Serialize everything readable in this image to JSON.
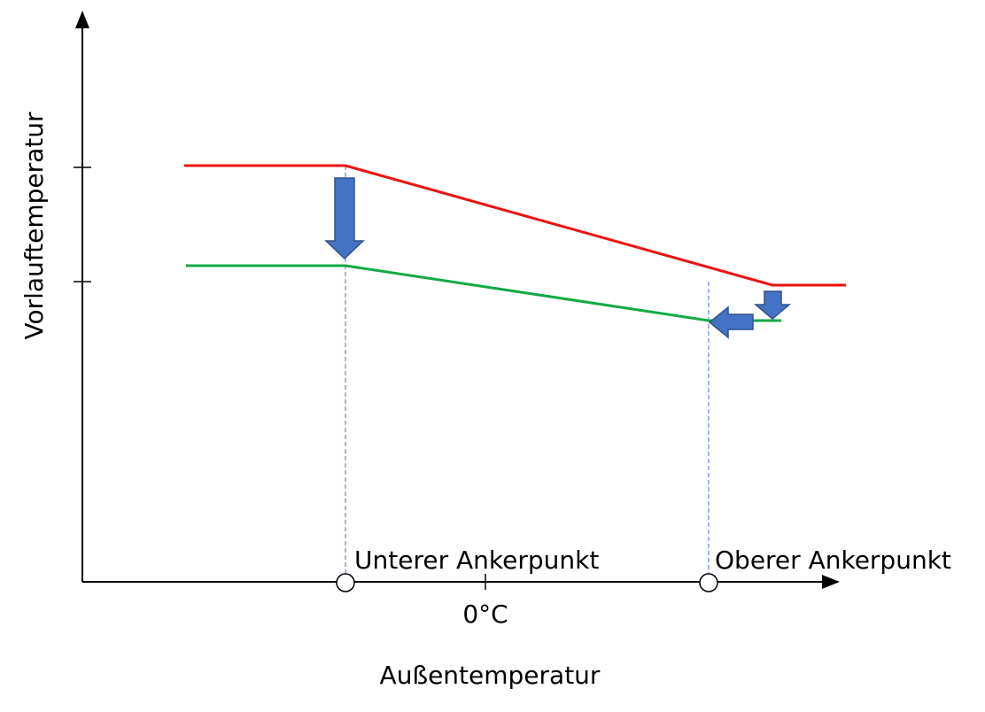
{
  "y_axis_label": "Vorlauftemperatur",
  "x_axis_label": "Außentemperatur",
  "x_tick_label": "0°C",
  "anchor_points": [
    "Unterer Ankerpunkt",
    "Oberer Ankerpunkt"
  ]
}
